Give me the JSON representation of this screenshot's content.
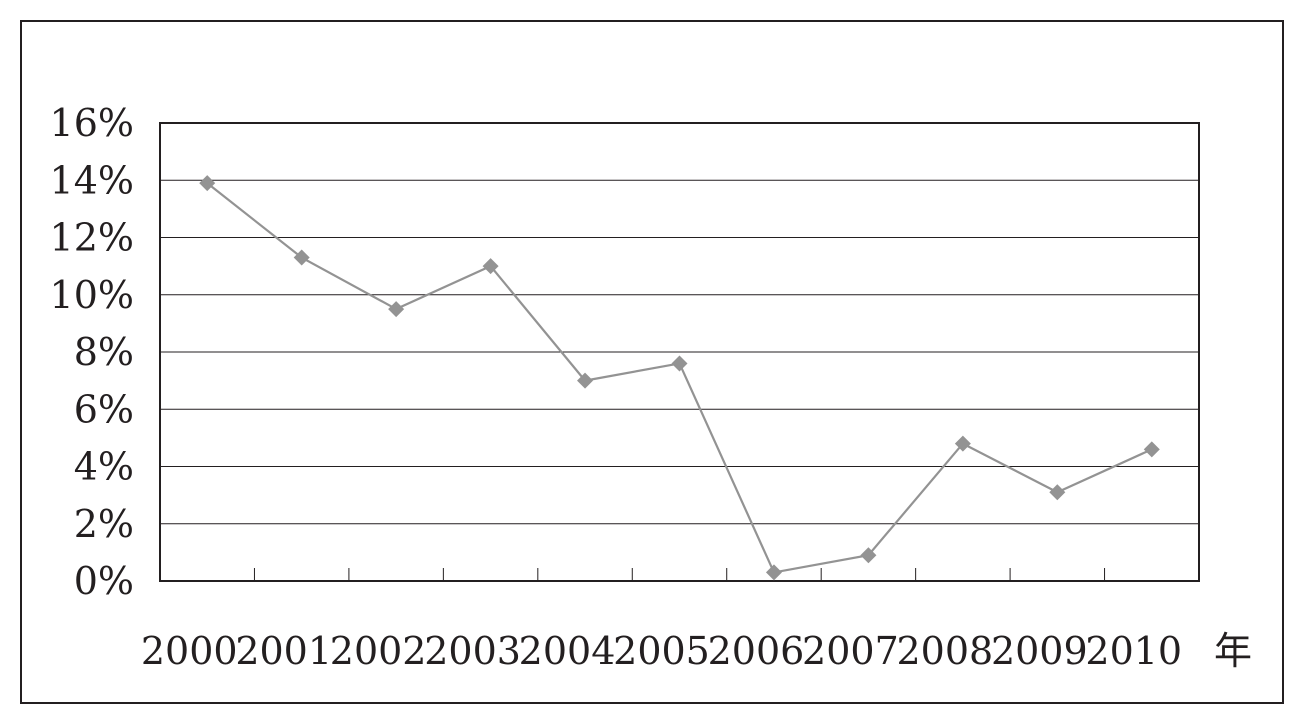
{
  "chart_data": {
    "type": "line",
    "title": "",
    "xlabel": "",
    "ylabel": "",
    "x_unit": "年",
    "categories": [
      "2000",
      "2001",
      "2002",
      "2003",
      "2004",
      "2005",
      "2006",
      "2007",
      "2008",
      "2009",
      "2010"
    ],
    "series": [
      {
        "values": [
          13.9,
          11.3,
          9.5,
          11.0,
          7.0,
          7.6,
          0.3,
          0.9,
          4.8,
          3.1,
          4.6
        ]
      }
    ],
    "ylim": [
      0,
      16
    ],
    "yticks": [
      0,
      2,
      4,
      6,
      8,
      10,
      12,
      14,
      16
    ],
    "ytick_labels": [
      "0%",
      "2%",
      "4%",
      "6%",
      "8%",
      "10%",
      "12%",
      "14%",
      "16%"
    ],
    "grid": "horizontal",
    "legend": "none",
    "colors": {
      "line": "#939393",
      "marker": "#939393",
      "axis": "#231f20",
      "grid": "#231f20"
    }
  }
}
